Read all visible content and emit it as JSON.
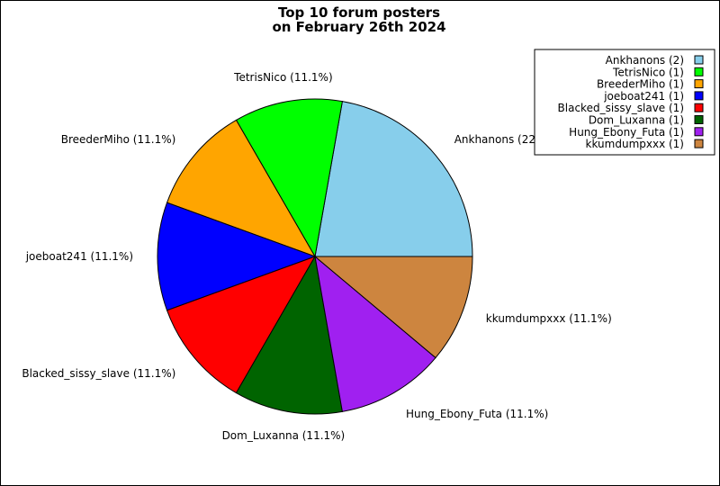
{
  "chart_data": {
    "type": "pie",
    "title_lines": [
      "Top 10 forum posters",
      "on February 26th 2024"
    ],
    "slices": [
      {
        "name": "Ankhanons",
        "count": 2,
        "pct_label": "Ankhanons (22.",
        "color": "#87ceeb"
      },
      {
        "name": "TetrisNico",
        "count": 1,
        "pct_label": "TetrisNico (11.1%)",
        "color": "#00ff00"
      },
      {
        "name": "BreederMiho",
        "count": 1,
        "pct_label": "BreederMiho (11.1%)",
        "color": "#ffa500"
      },
      {
        "name": "joeboat241",
        "count": 1,
        "pct_label": "joeboat241 (11.1%)",
        "color": "#0000ff"
      },
      {
        "name": "Blacked_sissy_slave",
        "count": 1,
        "pct_label": "Blacked_sissy_slave (11.1%)",
        "color": "#ff0000"
      },
      {
        "name": "Dom_Luxanna",
        "count": 1,
        "pct_label": "Dom_Luxanna (11.1%)",
        "color": "#006400"
      },
      {
        "name": "Hung_Ebony_Futa",
        "count": 1,
        "pct_label": "Hung_Ebony_Futa (11.1%)",
        "color": "#a020f0"
      },
      {
        "name": "kkumdumpxxx",
        "count": 1,
        "pct_label": "kkumdumpxxx (11.1%)",
        "color": "#cd853f"
      }
    ],
    "legend": {
      "placement": "top-right",
      "entries": [
        "Ankhanons (2)",
        "TetrisNico (1)",
        "BreederMiho (1)",
        "joeboat241 (1)",
        "Blacked_sissy_slave (1)",
        "Dom_Luxanna (1)",
        "Hung_Ebony_Futa (1)",
        "kkumdumpxxx (1)"
      ]
    }
  }
}
